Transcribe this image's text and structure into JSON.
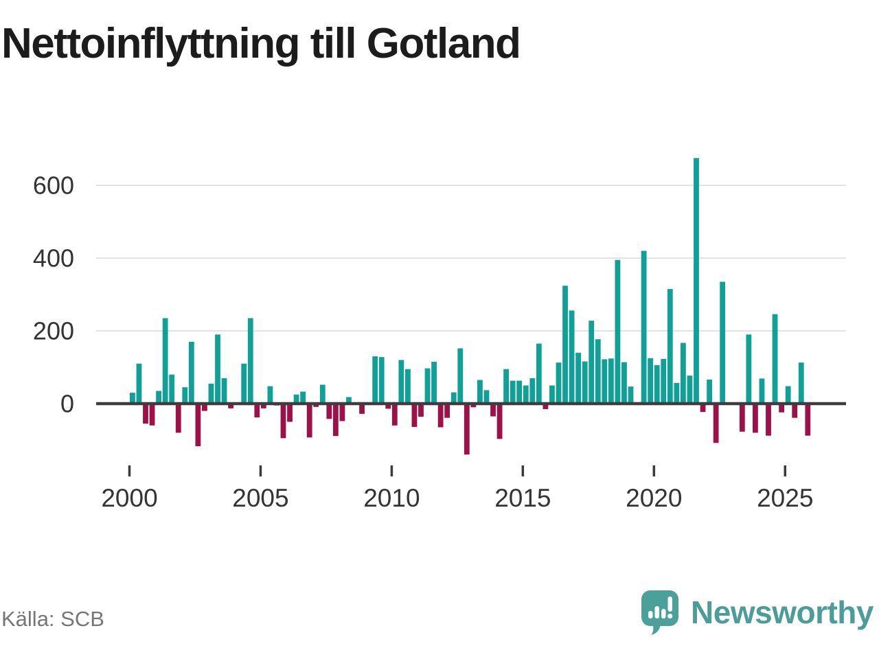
{
  "title": "Nettoinflyttning till Gotland",
  "source": "Källa: SCB",
  "logo": {
    "text": "Newsworthy",
    "icon": "newsworthy-speech-bubble-bar-chart-icon"
  },
  "chart_data": {
    "type": "bar",
    "title": "Nettoinflyttning till Gotland",
    "frequency": "quarterly",
    "start": "2000-Q1",
    "end": "2025-Q4",
    "values": [
      30,
      110,
      -55,
      -60,
      35,
      235,
      80,
      -80,
      45,
      170,
      -117,
      -20,
      55,
      190,
      70,
      -13,
      0,
      110,
      235,
      -38,
      -13,
      48,
      -5,
      -95,
      -50,
      25,
      33,
      -93,
      -9,
      52,
      -42,
      -89,
      -48,
      18,
      0,
      -28,
      0,
      130,
      128,
      -14,
      -60,
      120,
      95,
      -64,
      -36,
      97,
      115,
      -65,
      -39,
      31,
      152,
      -140,
      -10,
      65,
      37,
      -35,
      -97,
      95,
      63,
      63,
      50,
      70,
      165,
      -15,
      50,
      113,
      324,
      256,
      140,
      116,
      228,
      177,
      122,
      124,
      395,
      114,
      47,
      0,
      420,
      125,
      106,
      123,
      315,
      57,
      167,
      77,
      675,
      -23,
      66,
      -108,
      335,
      0,
      0,
      -77,
      190,
      -80,
      69,
      -88,
      246,
      -24,
      48,
      -39,
      113,
      -88
    ],
    "x_tick_labels": [
      "2000",
      "2005",
      "2010",
      "2015",
      "2020",
      "2025"
    ],
    "x_ticks_every_n_bars": 20,
    "y_tick_labels": [
      "0",
      "200",
      "400",
      "600"
    ],
    "y_ticks": [
      0,
      200,
      400,
      600
    ],
    "ylim": [
      -150,
      700
    ],
    "grid": "horizontal",
    "legend": "none",
    "positive_color": "#10a097",
    "negative_color": "#9e1148",
    "zero_line_color": "#3d3d3d",
    "grid_color": "#e2e2e2",
    "axis_text_color": "#333333"
  }
}
